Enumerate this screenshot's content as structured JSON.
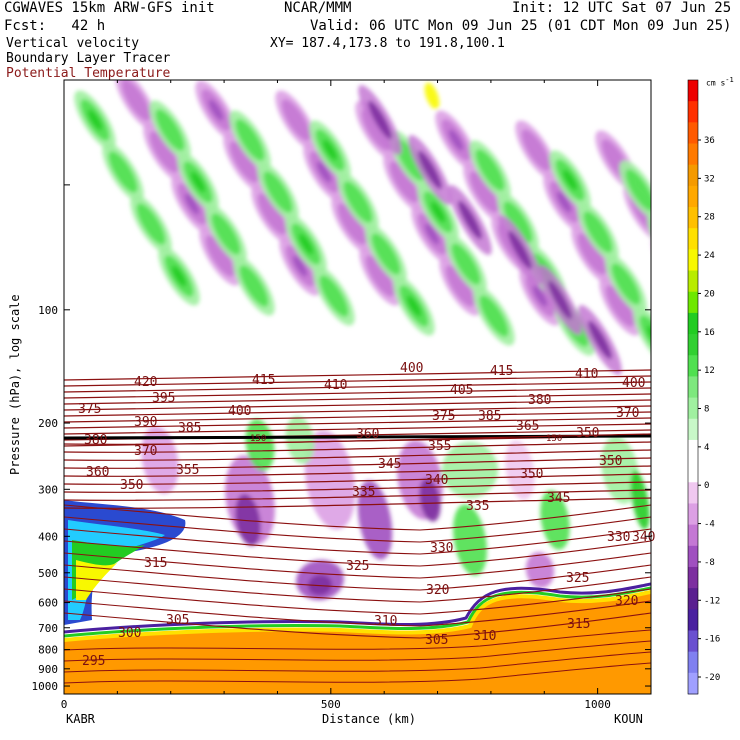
{
  "header": {
    "model": "CGWAVES 15km ARW-GFS init",
    "org": "NCAR/MMM",
    "init": "Init: 12 UTC Sat 07 Jun 25",
    "fcst": "Fcst:   42 h",
    "valid": "Valid: 06 UTC Mon 09 Jun 25 (01 CDT Mon 09 Jun 25)",
    "xy": "XY= 187.4,173.8 to 191.8,100.1",
    "field1": "Vertical velocity",
    "field2": "Boundary Layer Tracer",
    "field3": "Potential Temperature"
  },
  "colors": {
    "theta_contour": "#8b1010",
    "theta_label": "#7a1010",
    "field3_text": "#8b1a1a"
  },
  "chart_data": {
    "type": "heatmap",
    "title": "Vertical velocity",
    "xlabel": "Distance (km)",
    "ylabel": "Pressure (hPa), log scale",
    "xlim": [
      0,
      1100
    ],
    "x_ticks": [
      "0",
      "500",
      "1000"
    ],
    "y_ticks": [
      "100",
      "200",
      "300",
      "400",
      "500",
      "600",
      "700",
      "800",
      "900",
      "1000"
    ],
    "y_scale": "log",
    "endpoints": {
      "left": "KABR",
      "right": "KOUN"
    },
    "colorbar": {
      "unit": "cm s",
      "unit_exp": "-1",
      "ticks": [
        "36",
        "32",
        "28",
        "24",
        "20",
        "16",
        "12",
        "8",
        "4",
        "0",
        "-4",
        "-8",
        "-12",
        "-16",
        "-20"
      ],
      "colors": [
        "#ee0000",
        "#ff3000",
        "#ff5a00",
        "#ff7a00",
        "#f59a00",
        "#ffa800",
        "#ffc000",
        "#ffe000",
        "#f8f800",
        "#b8ec00",
        "#6ee800",
        "#22cc22",
        "#32d032",
        "#50e050",
        "#7ee87e",
        "#a0f0a0",
        "#c8f8c8",
        "#ffffff",
        "#ffffff",
        "#f0c8f0",
        "#dca0e4",
        "#c478d4",
        "#a050c0",
        "#7d2fa0",
        "#5a2090",
        "#4a20a0",
        "#6a50d0",
        "#8080f0",
        "#a0a0ff"
      ]
    },
    "theta_labels": [
      "420",
      "415",
      "410",
      "400",
      "415",
      "410",
      "400",
      "405",
      "395",
      "400",
      "375",
      "375",
      "385",
      "380",
      "370",
      "390",
      "385",
      "360",
      "365",
      "350",
      "380",
      "370",
      "355",
      "350",
      "360",
      "355",
      "345",
      "350",
      "350",
      "340",
      "345",
      "335",
      "335",
      "340",
      "330",
      "330",
      "315",
      "325",
      "320",
      "325",
      "320",
      "305",
      "310",
      "310",
      "315",
      "300",
      "305",
      "295"
    ],
    "tropopause_labels": [
      "150",
      "150"
    ]
  }
}
